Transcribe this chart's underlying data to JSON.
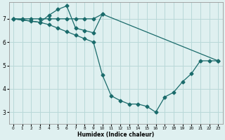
{
  "xlabel": "Humidex (Indice chaleur)",
  "bg_color": "#dff0f0",
  "grid_color": "#b8d8d8",
  "line_color": "#1a6b6b",
  "xlim": [
    -0.5,
    23.5
  ],
  "ylim": [
    2.5,
    7.7
  ],
  "xticks": [
    0,
    1,
    2,
    3,
    4,
    5,
    6,
    7,
    8,
    9,
    10,
    11,
    12,
    13,
    14,
    15,
    16,
    17,
    18,
    19,
    20,
    21,
    22,
    23
  ],
  "yticks": [
    3,
    4,
    5,
    6,
    7
  ],
  "line_top_x": [
    0,
    1,
    2,
    3,
    4,
    5,
    6,
    7,
    8,
    9,
    10,
    23
  ],
  "line_top_y": [
    7.0,
    7.0,
    7.0,
    7.0,
    7.0,
    7.0,
    7.0,
    7.0,
    7.0,
    7.0,
    7.2,
    5.2
  ],
  "line_mid_x": [
    0,
    3,
    4,
    5,
    6,
    7,
    8,
    9,
    10
  ],
  "line_mid_y": [
    7.0,
    6.85,
    7.15,
    7.4,
    7.55,
    6.6,
    6.5,
    6.4,
    7.2
  ],
  "line_bot_x": [
    0,
    1,
    2,
    3,
    4,
    5,
    6,
    7,
    8,
    9,
    10,
    11,
    12,
    13,
    14,
    15,
    16,
    17,
    18,
    19,
    20,
    21,
    22,
    23
  ],
  "line_bot_y": [
    7.0,
    6.95,
    6.9,
    6.85,
    6.75,
    6.6,
    6.45,
    6.3,
    6.15,
    6.0,
    4.6,
    3.7,
    3.5,
    3.35,
    3.35,
    3.25,
    3.0,
    3.65,
    3.85,
    4.3,
    4.65,
    5.2,
    5.2,
    5.2
  ],
  "marker": "D",
  "markersize": 2.5,
  "linewidth": 0.9
}
